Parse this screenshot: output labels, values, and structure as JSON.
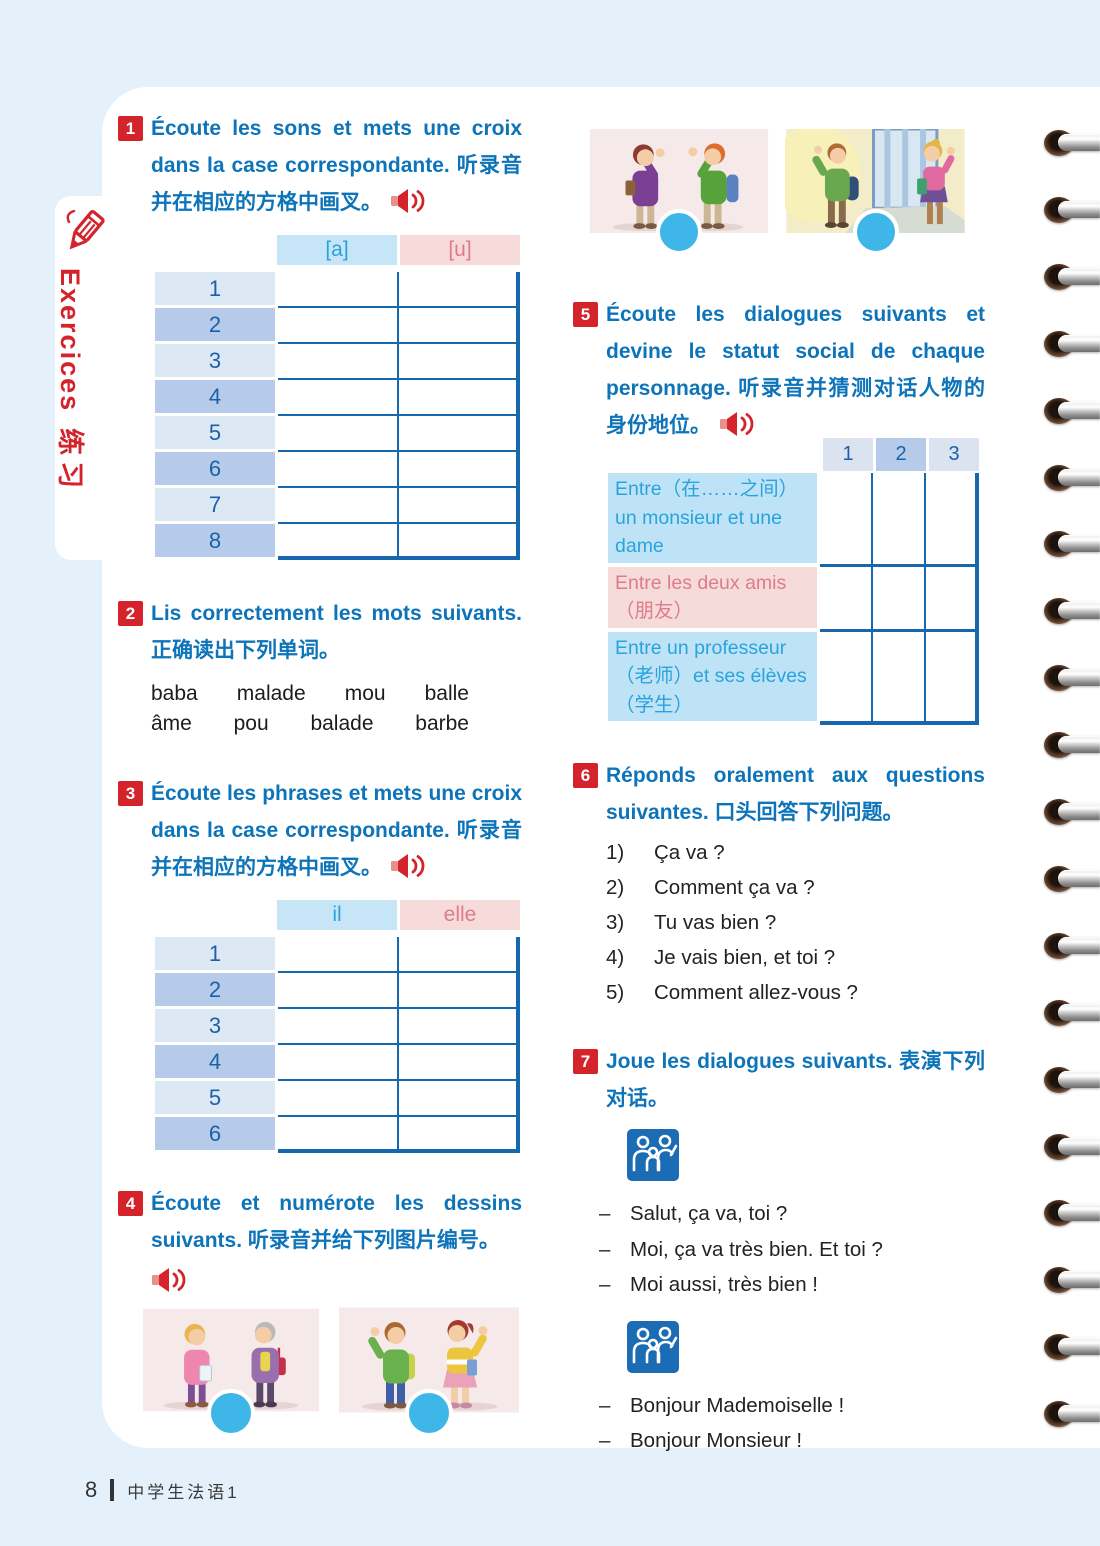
{
  "page": {
    "background_color": "#e5f1fa",
    "accent_blue": "#0e74ba",
    "accent_red": "#d5232b",
    "table_border_blue": "#1568ad",
    "sidebar": {
      "label_fr": "Exercices",
      "label_zh": "练习"
    },
    "footer": {
      "page_number": "8",
      "book_title": "中学生法语1"
    },
    "binding_ring_count": 20
  },
  "top_pictures": [
    {
      "name": "two-students-greeting"
    },
    {
      "name": "students-at-school-gate"
    }
  ],
  "exercises": {
    "ex1": {
      "number": "1",
      "title": "Écoute les sons et mets une croix dans la case correspondante. 听录音并在相应的方格中画叉。",
      "has_audio": true,
      "table": {
        "columns": [
          {
            "label": "[a]",
            "theme": "blue"
          },
          {
            "label": "[u]",
            "theme": "pink"
          }
        ],
        "rows": [
          "1",
          "2",
          "3",
          "4",
          "5",
          "6",
          "7",
          "8"
        ]
      }
    },
    "ex2": {
      "number": "2",
      "title": "Lis correctement les mots suivants. 正确读出下列单词。",
      "word_lines": [
        [
          "baba",
          "malade",
          "mou",
          "balle"
        ],
        [
          "âme",
          "pou",
          "balade",
          "barbe"
        ]
      ]
    },
    "ex3": {
      "number": "3",
      "title": "Écoute les phrases et mets une croix dans la case correspondante. 听录音并在相应的方格中画叉。",
      "has_audio": true,
      "table": {
        "columns": [
          {
            "label": "il",
            "theme": "blue"
          },
          {
            "label": "elle",
            "theme": "pink"
          }
        ],
        "rows": [
          "1",
          "2",
          "3",
          "4",
          "5",
          "6"
        ]
      }
    },
    "ex4": {
      "number": "4",
      "title": "Écoute et numérote les dessins suivants. 听录音并给下列图片编号。",
      "has_audio": true,
      "pictures": [
        {
          "name": "woman-greeting-elderly-lady"
        },
        {
          "name": "boy-and-girl-waving"
        }
      ]
    },
    "ex5": {
      "number": "5",
      "title": "Écoute les dialogues suivants et devine le statut social de chaque personnage. 听录音并猜测对话人物的身份地位。",
      "has_audio": true,
      "table": {
        "columns": [
          "1",
          "2",
          "3"
        ],
        "rows": [
          {
            "label": "Entre（在……之间）un monsieur et une dame",
            "theme": "blue"
          },
          {
            "label": "Entre les deux amis（朋友）",
            "theme": "pink"
          },
          {
            "label": "Entre un professeur（老师）et ses élèves（学生）",
            "theme": "blue"
          }
        ]
      }
    },
    "ex6": {
      "number": "6",
      "title": "Réponds oralement aux questions suivantes. 口头回答下列问题。",
      "questions": [
        {
          "num": "1)",
          "text": "Ça va ?"
        },
        {
          "num": "2)",
          "text": "Comment ça va ?"
        },
        {
          "num": "3)",
          "text": "Tu vas bien ?"
        },
        {
          "num": "4)",
          "text": "Je vais bien, et toi ?"
        },
        {
          "num": "5)",
          "text": "Comment allez-vous ?"
        }
      ]
    },
    "ex7": {
      "number": "7",
      "title": "Joue les dialogues suivants. 表演下列对话。",
      "dash": "–",
      "dialogues": [
        {
          "lines": [
            "Salut, ça va, toi ?",
            "Moi, ça va très bien. Et toi ?",
            "Moi aussi, très bien !"
          ]
        },
        {
          "lines": [
            "Bonjour Mademoiselle !",
            "Bonjour Monsieur !"
          ]
        }
      ]
    }
  }
}
